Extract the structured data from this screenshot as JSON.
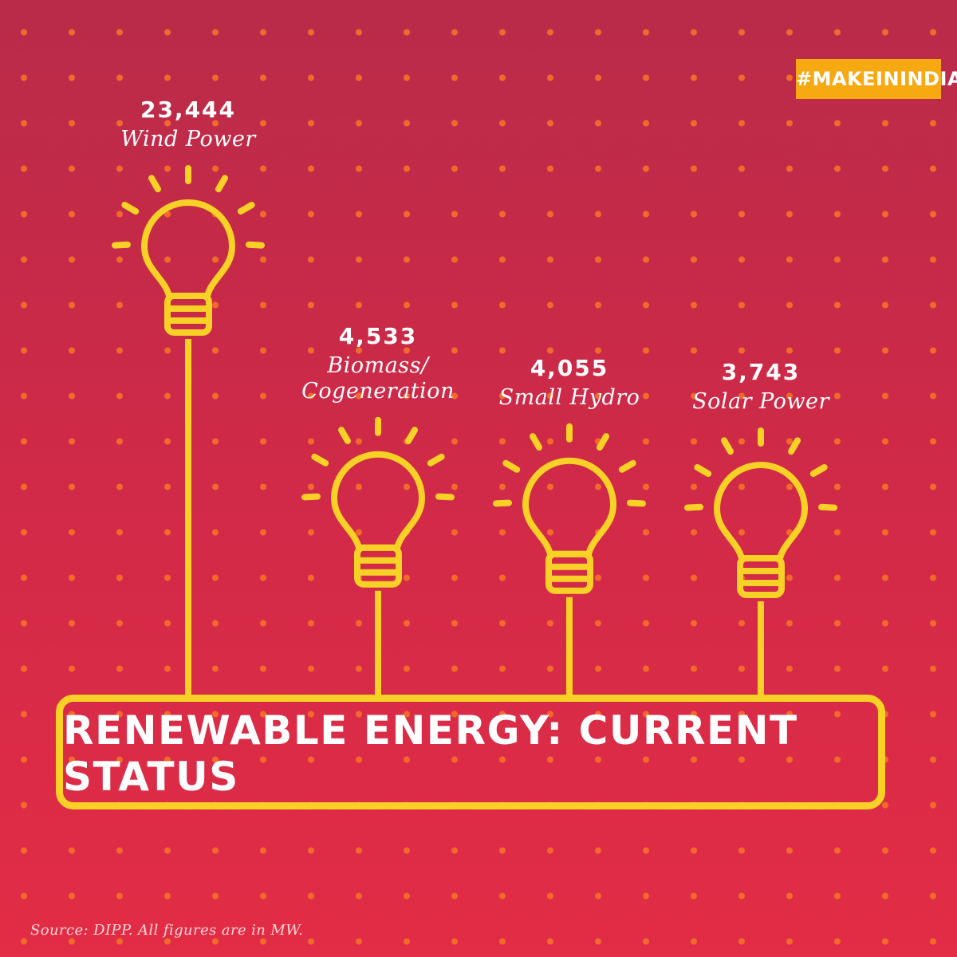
{
  "hashtag": "#MAKEININDIA",
  "chart_data": {
    "type": "bar",
    "title": "RENEWABLE ENERGY: CURRENT STATUS",
    "categories": [
      "Wind Power",
      "Biomass/ Cogeneration",
      "Small Hydro",
      "Solar Power"
    ],
    "category_lines": [
      [
        "Wind Power"
      ],
      [
        "Biomass/",
        "Cogeneration"
      ],
      [
        "Small Hydro"
      ],
      [
        "Solar Power"
      ]
    ],
    "values": [
      23444,
      4533,
      4055,
      3743
    ],
    "value_labels": [
      "23,444",
      "4,533",
      "4,055",
      "3,743"
    ]
  },
  "source": "Source: DIPP. All figures are in MW.",
  "colors": {
    "background_top": "#b92b49",
    "background_bottom": "#e32c46",
    "dots": "#f16a2a",
    "bulb_line": "#f7d125",
    "hashtag_bg": "#f7a912",
    "text": "#ffffff"
  }
}
